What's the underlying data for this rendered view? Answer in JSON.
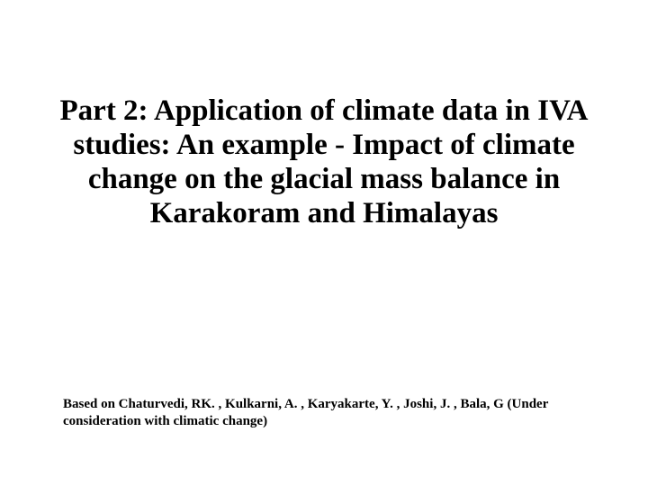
{
  "slide": {
    "title": "Part 2: Application of climate data in IVA studies: An example - Impact of climate change on the glacial mass balance in Karakoram and Himalayas",
    "citation": "Based on Chaturvedi, RK. , Kulkarni, A. , Karyakarte, Y. , Joshi, J. , Bala, G (Under consideration with climatic change)",
    "title_fontsize": 33,
    "citation_fontsize": 15,
    "background_color": "#ffffff",
    "text_color": "#000000",
    "font_family": "Times New Roman"
  }
}
